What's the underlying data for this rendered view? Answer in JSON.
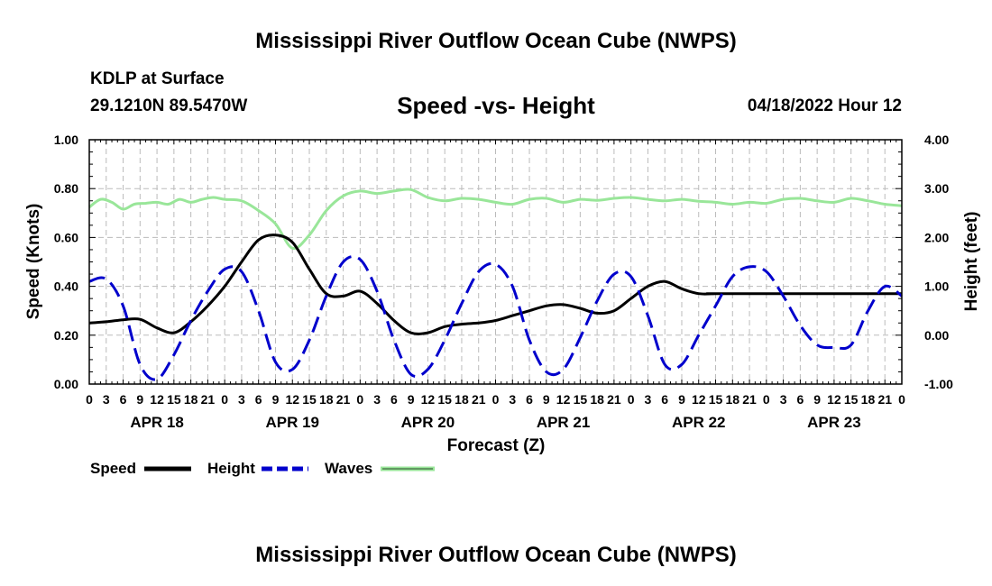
{
  "header": {
    "title": "Mississippi River Outflow Ocean Cube (NWPS)",
    "station": "KDLP at Surface",
    "location": "29.1210N  89.5470W",
    "subtitle": "Speed -vs- Height",
    "run": "04/18/2022 Hour 12",
    "footer_title": "Mississippi River Outflow Ocean Cube (NWPS)"
  },
  "colors": {
    "speed": "#000000",
    "height": "#0000cc",
    "waves": "#99e699",
    "grid": "#bbbbbb"
  },
  "chart_data": {
    "type": "line",
    "xlabel": "Forecast (Z)",
    "ylabel": "Speed (Knots)",
    "y2label": "Height (feet)",
    "xlim_hours": [
      0,
      144
    ],
    "ylim": [
      0,
      1
    ],
    "y2lim": [
      -1,
      4
    ],
    "yticks": [
      "0.00",
      "0.20",
      "0.40",
      "0.60",
      "0.80",
      "1.00"
    ],
    "y2ticks": [
      "-1.00",
      "0.00",
      "1.00",
      "2.00",
      "3.00",
      "4.00"
    ],
    "xtick_labels": [
      "0",
      "3",
      "6",
      "9",
      "12",
      "15",
      "18",
      "21",
      "0",
      "3",
      "6",
      "9",
      "12",
      "15",
      "18",
      "21",
      "0",
      "3",
      "6",
      "9",
      "12",
      "15",
      "18",
      "21",
      "0",
      "3",
      "6",
      "9",
      "12",
      "15",
      "18",
      "21",
      "0",
      "3",
      "6",
      "9",
      "12",
      "15",
      "18",
      "21",
      "0",
      "3",
      "6",
      "9",
      "12",
      "15",
      "18",
      "21",
      "0"
    ],
    "day_labels": [
      {
        "label": "APR 18",
        "hour": 12
      },
      {
        "label": "APR 19",
        "hour": 36
      },
      {
        "label": "APR 20",
        "hour": 60
      },
      {
        "label": "APR 21",
        "hour": 84
      },
      {
        "label": "APR 22",
        "hour": 108
      },
      {
        "label": "APR 23",
        "hour": 132
      }
    ],
    "legend": [
      "Speed",
      "Height",
      "Waves"
    ],
    "series": [
      {
        "name": "Speed",
        "axis": "left",
        "style": "solid",
        "x": [
          0,
          3,
          6,
          9,
          12,
          15,
          18,
          21,
          24,
          27,
          30,
          33,
          36,
          39,
          42,
          45,
          48,
          51,
          54,
          57,
          60,
          63,
          66,
          69,
          72,
          75,
          78,
          81,
          84,
          87,
          90,
          93,
          96,
          99,
          102,
          105,
          108,
          111,
          112,
          144
        ],
        "y": [
          0.25,
          0.255,
          0.263,
          0.265,
          0.23,
          0.21,
          0.255,
          0.32,
          0.4,
          0.5,
          0.59,
          0.61,
          0.58,
          0.47,
          0.37,
          0.36,
          0.38,
          0.33,
          0.26,
          0.21,
          0.21,
          0.235,
          0.245,
          0.25,
          0.26,
          0.28,
          0.3,
          0.32,
          0.325,
          0.31,
          0.29,
          0.3,
          0.35,
          0.4,
          0.42,
          0.39,
          0.37,
          0.37,
          0.37,
          0.37
        ]
      },
      {
        "name": "Height",
        "axis": "right",
        "style": "dashed",
        "x": [
          0,
          3,
          6,
          9,
          12,
          15,
          18,
          21,
          24,
          27,
          30,
          33,
          36,
          39,
          42,
          45,
          48,
          51,
          54,
          57,
          60,
          63,
          66,
          69,
          72,
          75,
          78,
          81,
          84,
          87,
          90,
          93,
          96,
          99,
          102,
          105,
          108,
          111,
          114,
          117,
          120,
          123,
          126,
          129,
          132,
          135,
          138,
          141,
          144
        ],
        "y": [
          1.1,
          1.15,
          0.6,
          -0.6,
          -0.9,
          -0.4,
          0.3,
          0.9,
          1.35,
          1.3,
          0.5,
          -0.55,
          -0.7,
          -0.1,
          0.8,
          1.5,
          1.55,
          0.9,
          -0.1,
          -0.8,
          -0.7,
          -0.1,
          0.65,
          1.3,
          1.45,
          1.0,
          -0.1,
          -0.75,
          -0.7,
          -0.05,
          0.7,
          1.25,
          1.2,
          0.4,
          -0.6,
          -0.6,
          0.0,
          0.6,
          1.2,
          1.4,
          1.3,
          0.8,
          0.2,
          -0.2,
          -0.25,
          -0.2,
          0.5,
          1.0,
          0.8
        ]
      },
      {
        "name": "Waves",
        "axis": "right",
        "style": "solid",
        "x": [
          0,
          2,
          4,
          6,
          8,
          10,
          12,
          14,
          16,
          18,
          20,
          22,
          24,
          27,
          30,
          33,
          36,
          39,
          42,
          45,
          48,
          51,
          54,
          57,
          60,
          63,
          66,
          69,
          72,
          75,
          78,
          81,
          84,
          87,
          90,
          93,
          96,
          99,
          102,
          105,
          108,
          111,
          114,
          117,
          120,
          123,
          126,
          129,
          132,
          135,
          138,
          141,
          144
        ],
        "y": [
          2.62,
          2.78,
          2.72,
          2.58,
          2.68,
          2.7,
          2.72,
          2.68,
          2.78,
          2.72,
          2.78,
          2.82,
          2.78,
          2.75,
          2.55,
          2.28,
          1.78,
          2.05,
          2.55,
          2.85,
          2.95,
          2.9,
          2.95,
          2.98,
          2.82,
          2.75,
          2.8,
          2.78,
          2.72,
          2.68,
          2.78,
          2.8,
          2.72,
          2.78,
          2.76,
          2.8,
          2.82,
          2.78,
          2.75,
          2.78,
          2.74,
          2.72,
          2.68,
          2.72,
          2.7,
          2.78,
          2.8,
          2.75,
          2.72,
          2.8,
          2.75,
          2.68,
          2.65
        ]
      }
    ]
  }
}
